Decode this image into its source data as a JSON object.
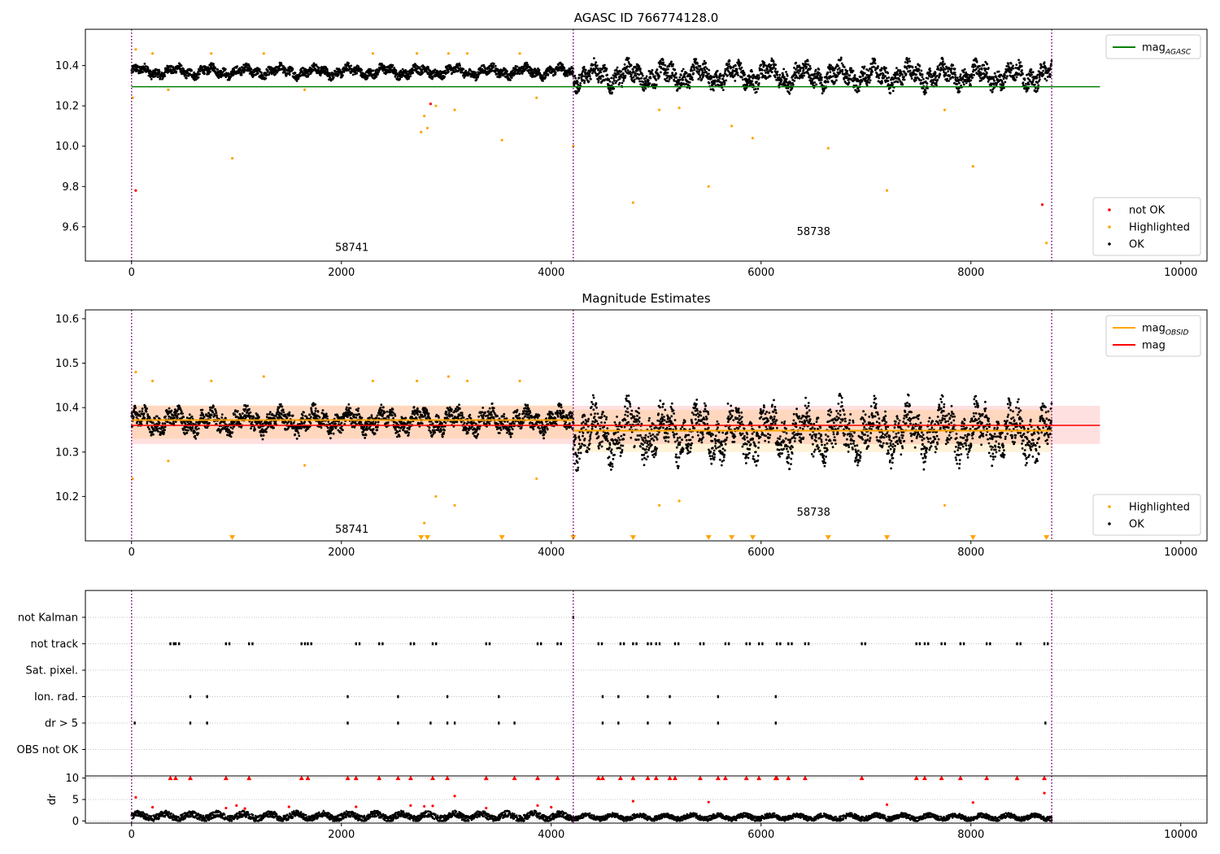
{
  "chart_data": [
    {
      "type": "scatter",
      "title": "AGASC ID 766774128.0",
      "xlim": [
        -440,
        10250
      ],
      "ylim": [
        9.43,
        10.58
      ],
      "x_ticks": [
        0,
        2000,
        4000,
        6000,
        8000,
        10000
      ],
      "y_ticks": [
        9.6,
        9.8,
        10.0,
        10.2,
        10.4
      ],
      "y_tick_labels": [
        "9.6",
        "9.8",
        "10.0",
        "10.2",
        "10.4"
      ],
      "grid": false,
      "legends": [
        {
          "placement": "upper-right",
          "entries": [
            {
              "label": "mag",
              "subscript": "AGASC",
              "color": "#008000",
              "kind": "line"
            }
          ]
        },
        {
          "placement": "lower-right",
          "entries": [
            {
              "label": "not OK",
              "color": "#ff0000",
              "kind": "point"
            },
            {
              "label": "Highlighted",
              "color": "#ffa500",
              "kind": "point"
            },
            {
              "label": "OK",
              "color": "#000000",
              "kind": "point"
            }
          ]
        }
      ],
      "hlines": [
        {
          "name": "mag_AGASC",
          "y": 10.295,
          "x_range": [
            0,
            9230
          ],
          "color": "#008000"
        }
      ],
      "vlines": [
        0,
        4210,
        8770
      ],
      "annotations": [
        {
          "text": "58741",
          "x": 2100,
          "y": 9.48
        },
        {
          "text": "58738",
          "x": 6500,
          "y": 9.56
        }
      ],
      "series": [
        {
          "name": "OK",
          "color": "#000000",
          "kind": "band",
          "segments": [
            {
              "x_range": [
                0,
                4210
              ],
              "center": 10.37,
              "spread": 0.045
            },
            {
              "x_range": [
                4210,
                8770
              ],
              "center": 10.35,
              "spread": 0.09
            }
          ]
        },
        {
          "name": "Highlighted",
          "color": "#ffa500",
          "points": [
            [
              10,
              10.24
            ],
            [
              40,
              10.48
            ],
            [
              200,
              10.46
            ],
            [
              350,
              10.28
            ],
            [
              760,
              10.46
            ],
            [
              960,
              9.94
            ],
            [
              1260,
              10.46
            ],
            [
              1650,
              10.28
            ],
            [
              2300,
              10.46
            ],
            [
              2720,
              10.46
            ],
            [
              2760,
              10.07
            ],
            [
              2790,
              10.15
            ],
            [
              2820,
              10.09
            ],
            [
              2900,
              10.2
            ],
            [
              3020,
              10.46
            ],
            [
              3080,
              10.18
            ],
            [
              3200,
              10.46
            ],
            [
              3530,
              10.03
            ],
            [
              3700,
              10.46
            ],
            [
              3860,
              10.24
            ],
            [
              4210,
              10.0
            ],
            [
              4780,
              9.72
            ],
            [
              5030,
              10.18
            ],
            [
              5220,
              10.19
            ],
            [
              5500,
              9.8
            ],
            [
              5720,
              10.1
            ],
            [
              5920,
              10.04
            ],
            [
              6640,
              9.99
            ],
            [
              7200,
              9.78
            ],
            [
              7750,
              10.18
            ],
            [
              8020,
              9.9
            ],
            [
              8720,
              9.52
            ]
          ]
        },
        {
          "name": "not OK",
          "color": "#ff0000",
          "points": [
            [
              40,
              9.78
            ],
            [
              2850,
              10.21
            ],
            [
              8680,
              9.71
            ]
          ]
        }
      ]
    },
    {
      "type": "scatter",
      "title": "Magnitude Estimates",
      "xlim": [
        -440,
        10250
      ],
      "ylim": [
        10.1,
        10.62
      ],
      "x_ticks": [
        0,
        2000,
        4000,
        6000,
        8000,
        10000
      ],
      "y_ticks": [
        10.2,
        10.3,
        10.4,
        10.5,
        10.6
      ],
      "y_tick_labels": [
        "10.2",
        "10.3",
        "10.4",
        "10.5",
        "10.6"
      ],
      "grid": false,
      "legends": [
        {
          "placement": "upper-right",
          "entries": [
            {
              "label": "mag",
              "subscript": "OBSID",
              "color": "#ffa500",
              "kind": "line"
            },
            {
              "label": "mag",
              "color": "#ff0000",
              "kind": "line"
            }
          ]
        },
        {
          "placement": "lower-right",
          "entries": [
            {
              "label": "Highlighted",
              "color": "#ffa500",
              "kind": "point"
            },
            {
              "label": "OK",
              "color": "#000000",
              "kind": "point"
            }
          ]
        }
      ],
      "mag_line": {
        "y": 10.36,
        "x_range": [
          0,
          9230
        ],
        "band": [
          10.318,
          10.404
        ],
        "color": "#ff0000"
      },
      "obsid_segments": [
        {
          "x_range": [
            0,
            4210
          ],
          "y": 10.372,
          "band": [
            10.33,
            10.405
          ]
        },
        {
          "x_range": [
            4210,
            8770
          ],
          "y": 10.348,
          "band": [
            10.3,
            10.395
          ]
        }
      ],
      "vlines": [
        0,
        4210,
        8770
      ],
      "annotations": [
        {
          "text": "58741",
          "x": 2100,
          "y": 10.118
        },
        {
          "text": "58738",
          "x": 6500,
          "y": 10.157
        }
      ],
      "lower_limit_markers": [
        960,
        2760,
        2820,
        3530,
        4210,
        4780,
        5500,
        5720,
        5920,
        6640,
        7200,
        8020,
        8720
      ],
      "series": [
        {
          "name": "OK",
          "color": "#000000",
          "kind": "band",
          "segments": [
            {
              "x_range": [
                0,
                4210
              ],
              "center": 10.37,
              "spread": 0.04
            },
            {
              "x_range": [
                4210,
                8770
              ],
              "center": 10.345,
              "spread": 0.085
            }
          ]
        },
        {
          "name": "Highlighted",
          "color": "#ffa500",
          "points": [
            [
              10,
              10.24
            ],
            [
              40,
              10.48
            ],
            [
              200,
              10.46
            ],
            [
              350,
              10.28
            ],
            [
              760,
              10.46
            ],
            [
              1260,
              10.47
            ],
            [
              1650,
              10.27
            ],
            [
              2300,
              10.46
            ],
            [
              2720,
              10.46
            ],
            [
              2790,
              10.14
            ],
            [
              2900,
              10.2
            ],
            [
              3020,
              10.47
            ],
            [
              3080,
              10.18
            ],
            [
              3200,
              10.46
            ],
            [
              3700,
              10.46
            ],
            [
              3860,
              10.24
            ],
            [
              5030,
              10.18
            ],
            [
              5220,
              10.19
            ],
            [
              7750,
              10.18
            ]
          ]
        }
      ]
    },
    {
      "type": "scatter",
      "title": "",
      "categories": [
        "not Kalman",
        "not track",
        "Sat. pixel.",
        "Ion. rad.",
        "dr > 5",
        "OBS not OK"
      ],
      "xlim": [
        -440,
        10250
      ],
      "x_ticks": [
        0,
        2000,
        4000,
        6000,
        8000,
        10000
      ],
      "grid": true,
      "vlines": [
        0,
        4210,
        8770
      ],
      "flags": {
        "not Kalman": [
          4210
        ],
        "not track": [
          370,
          420,
          900,
          1120,
          1620,
          1680,
          2140,
          2360,
          2660,
          2870,
          3380,
          3870,
          4060,
          4450,
          4660,
          4780,
          4920,
          5000,
          5180,
          5420,
          5660,
          5860,
          5980,
          6150,
          6260,
          6420,
          6960,
          7480,
          7560,
          7720,
          7900,
          8150,
          8440,
          8700
        ],
        "Sat. pixel.": [],
        "Ion. rad.": [
          560,
          720,
          2060,
          2540,
          3010,
          3500,
          4490,
          4640,
          4920,
          5130,
          5590,
          6140
        ],
        "dr > 5": [
          30,
          560,
          720,
          2060,
          2540,
          2850,
          3010,
          3080,
          3500,
          3650,
          4490,
          4640,
          4920,
          5130,
          5590,
          6140,
          8710
        ],
        "OBS not OK": []
      }
    },
    {
      "type": "scatter",
      "title": "",
      "ylabel": "dr",
      "xlim": [
        -440,
        10250
      ],
      "ylim": [
        -0.5,
        10.5
      ],
      "x_ticks": [
        0,
        2000,
        4000,
        6000,
        8000,
        10000
      ],
      "y_ticks": [
        0,
        5,
        10
      ],
      "grid": true,
      "vlines": [
        0,
        4210,
        8770
      ],
      "clip_markers_at_10": [
        370,
        420,
        560,
        900,
        1120,
        1620,
        1680,
        2060,
        2140,
        2360,
        2540,
        2660,
        2870,
        3010,
        3380,
        3650,
        3870,
        4060,
        4450,
        4490,
        4660,
        4780,
        4920,
        5000,
        5130,
        5180,
        5420,
        5590,
        5660,
        5860,
        5980,
        6140,
        6150,
        6260,
        6420,
        6960,
        7480,
        7560,
        7720,
        7900,
        8150,
        8440,
        8700
      ],
      "series": [
        {
          "name": "OK",
          "color": "#000000",
          "kind": "band",
          "segments": [
            {
              "x_range": [
                0,
                4210
              ],
              "center": 1.1,
              "spread": 1.2
            },
            {
              "x_range": [
                4210,
                8770
              ],
              "center": 0.9,
              "spread": 0.9
            }
          ]
        },
        {
          "name": "not OK",
          "color": "#ff0000",
          "points": [
            [
              40,
              5.5
            ],
            [
              200,
              3.2
            ],
            [
              900,
              3.0
            ],
            [
              1000,
              3.6
            ],
            [
              1080,
              2.9
            ],
            [
              1500,
              3.3
            ],
            [
              2140,
              3.3
            ],
            [
              2660,
              3.6
            ],
            [
              2790,
              3.4
            ],
            [
              2870,
              3.5
            ],
            [
              3080,
              5.8
            ],
            [
              3380,
              3.0
            ],
            [
              3870,
              3.6
            ],
            [
              4000,
              3.2
            ],
            [
              4780,
              4.6
            ],
            [
              5500,
              4.4
            ],
            [
              7200,
              3.8
            ],
            [
              8020,
              4.3
            ],
            [
              8700,
              6.5
            ]
          ]
        }
      ]
    }
  ]
}
